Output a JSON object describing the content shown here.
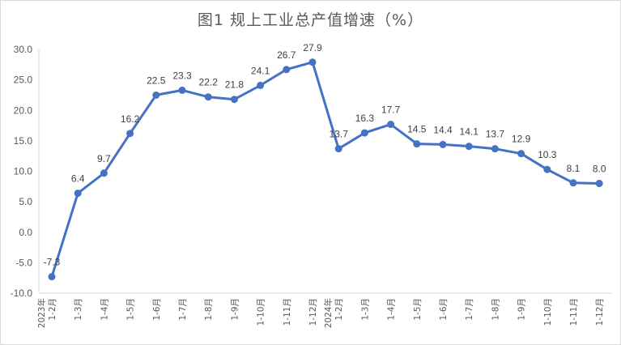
{
  "chart_data": {
    "type": "line",
    "title": "图1 规上工业总产值增速（%）",
    "xlabel": "",
    "ylabel": "",
    "ylim": [
      -10,
      30
    ],
    "yticks": [
      "30.0",
      "25.0",
      "20.0",
      "15.0",
      "10.0",
      "5.0",
      "0.0",
      "-5.0",
      "-10.0"
    ],
    "grid": false,
    "legend": "none",
    "line_color": "#4472c4",
    "categories": [
      [
        "2023年",
        "1-2月"
      ],
      [
        "1-3月"
      ],
      [
        "1-4月"
      ],
      [
        "1-5月"
      ],
      [
        "1-6月"
      ],
      [
        "1-7月"
      ],
      [
        "1-8月"
      ],
      [
        "1-9月"
      ],
      [
        "1-10月"
      ],
      [
        "1-11月"
      ],
      [
        "1-12月"
      ],
      [
        "2024年",
        "1-2月"
      ],
      [
        "1-3月"
      ],
      [
        "1-4月"
      ],
      [
        "1-5月"
      ],
      [
        "1-6月"
      ],
      [
        "1-7月"
      ],
      [
        "1-8月"
      ],
      [
        "1-9月"
      ],
      [
        "1-10月"
      ],
      [
        "1-11月"
      ],
      [
        "1-12月"
      ]
    ],
    "values": [
      -7.3,
      6.4,
      9.7,
      16.2,
      22.5,
      23.3,
      22.2,
      21.8,
      24.1,
      26.7,
      27.9,
      13.7,
      16.3,
      17.7,
      14.5,
      14.4,
      14.1,
      13.7,
      12.9,
      10.3,
      8.1,
      8.0
    ],
    "data_labels": [
      "-7.3",
      "6.4",
      "9.7",
      "16.2",
      "22.5",
      "23.3",
      "22.2",
      "21.8",
      "24.1",
      "26.7",
      "27.9",
      "13.7",
      "16.3",
      "17.7",
      "14.5",
      "14.4",
      "14.1",
      "13.7",
      "12.9",
      "10.3",
      "8.1",
      "8.0"
    ]
  }
}
